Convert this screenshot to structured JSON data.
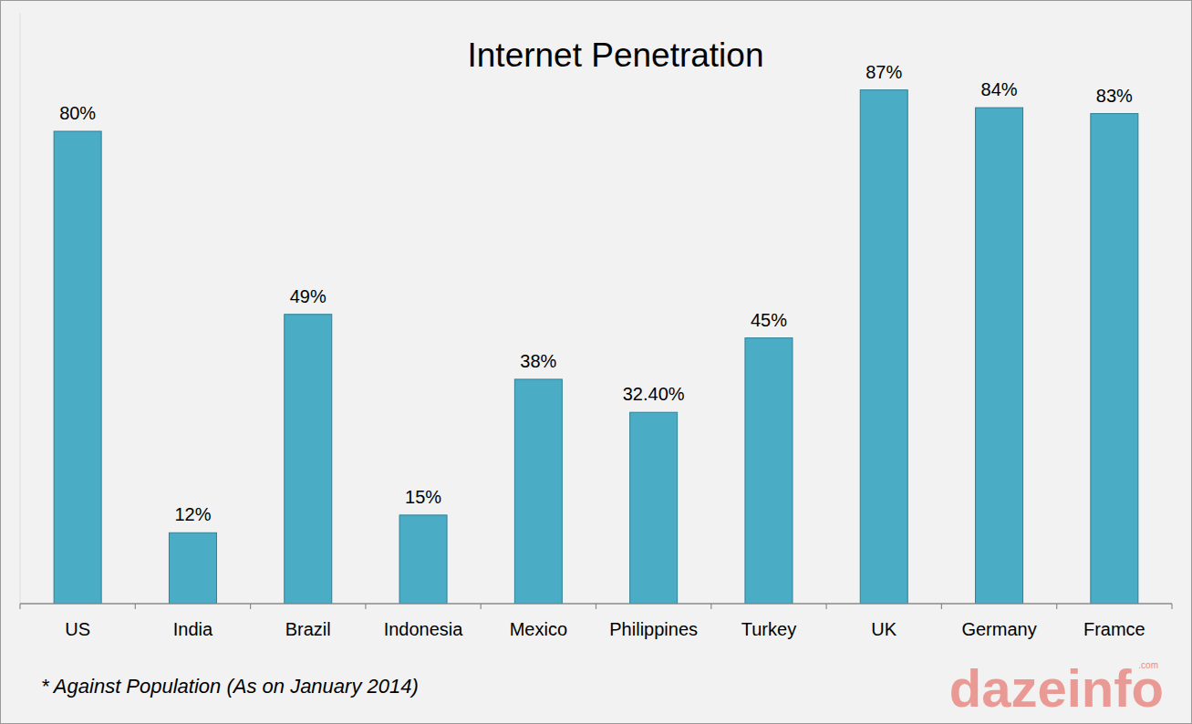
{
  "chart_data": {
    "type": "bar",
    "title": "Internet Penetration",
    "categories": [
      "US",
      "India",
      "Brazil",
      "Indonesia",
      "Mexico",
      "Philippines",
      "Turkey",
      "UK",
      "Germany",
      "Framce"
    ],
    "values": [
      80,
      12,
      49,
      15,
      38,
      32.4,
      45,
      87,
      84,
      83
    ],
    "value_labels": [
      "80%",
      "12%",
      "49%",
      "15%",
      "38%",
      "32.40%",
      "45%",
      "87%",
      "84%",
      "83%"
    ],
    "color": "#4bacc6",
    "ylim": [
      0,
      100
    ],
    "data_labels": true,
    "tick_labels": "x",
    "footnote": "* Against Population (As on January 2014)",
    "logo": "dazeinfo",
    "logo_suffix": ".com"
  }
}
